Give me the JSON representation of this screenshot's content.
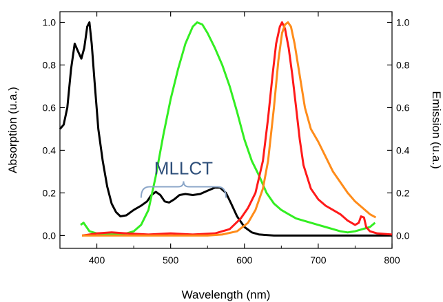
{
  "chart_data": {
    "type": "line",
    "xlabel": "Wavelength (nm)",
    "ylabel_left": "Absorption (u.a.)",
    "ylabel_right": "Emission (u.a.)",
    "xlim": [
      350,
      800
    ],
    "ylim": [
      -0.06,
      1.05
    ],
    "x_ticks": [
      "400",
      "500",
      "600",
      "700",
      "800"
    ],
    "y_ticks": [
      "0.0",
      "0.2",
      "0.4",
      "0.6",
      "0.8",
      "1.0"
    ],
    "grid": false,
    "annotation": {
      "text": "MLLCT",
      "x_from": 460,
      "x_to": 575,
      "y": 0.19
    },
    "series": [
      {
        "color": "#000000",
        "points": [
          [
            350,
            0.5
          ],
          [
            355,
            0.52
          ],
          [
            360,
            0.6
          ],
          [
            365,
            0.78
          ],
          [
            370,
            0.9
          ],
          [
            375,
            0.86
          ],
          [
            379,
            0.83
          ],
          [
            383,
            0.88
          ],
          [
            387,
            0.98
          ],
          [
            390,
            1.0
          ],
          [
            393,
            0.9
          ],
          [
            397,
            0.72
          ],
          [
            402,
            0.5
          ],
          [
            408,
            0.35
          ],
          [
            414,
            0.23
          ],
          [
            420,
            0.15
          ],
          [
            426,
            0.11
          ],
          [
            432,
            0.09
          ],
          [
            440,
            0.095
          ],
          [
            450,
            0.12
          ],
          [
            460,
            0.14
          ],
          [
            468,
            0.16
          ],
          [
            474,
            0.19
          ],
          [
            480,
            0.205
          ],
          [
            486,
            0.19
          ],
          [
            492,
            0.16
          ],
          [
            498,
            0.155
          ],
          [
            505,
            0.17
          ],
          [
            512,
            0.19
          ],
          [
            520,
            0.195
          ],
          [
            530,
            0.19
          ],
          [
            540,
            0.195
          ],
          [
            550,
            0.21
          ],
          [
            560,
            0.225
          ],
          [
            567,
            0.225
          ],
          [
            575,
            0.2
          ],
          [
            582,
            0.15
          ],
          [
            590,
            0.09
          ],
          [
            600,
            0.04
          ],
          [
            610,
            0.015
          ],
          [
            620,
            0.005
          ],
          [
            640,
            0.0
          ],
          [
            660,
            0.0
          ],
          [
            700,
            0.0
          ],
          [
            750,
            0.0
          ],
          [
            800,
            0.0
          ]
        ]
      },
      {
        "color": "#33ee22",
        "points": [
          [
            378,
            0.05
          ],
          [
            382,
            0.06
          ],
          [
            386,
            0.04
          ],
          [
            390,
            0.02
          ],
          [
            400,
            0.01
          ],
          [
            420,
            0.005
          ],
          [
            440,
            0.01
          ],
          [
            450,
            0.02
          ],
          [
            460,
            0.05
          ],
          [
            470,
            0.12
          ],
          [
            480,
            0.28
          ],
          [
            490,
            0.47
          ],
          [
            500,
            0.64
          ],
          [
            510,
            0.78
          ],
          [
            520,
            0.9
          ],
          [
            530,
            0.98
          ],
          [
            536,
            1.0
          ],
          [
            543,
            0.99
          ],
          [
            550,
            0.95
          ],
          [
            560,
            0.88
          ],
          [
            570,
            0.8
          ],
          [
            580,
            0.7
          ],
          [
            590,
            0.58
          ],
          [
            600,
            0.45
          ],
          [
            610,
            0.35
          ],
          [
            620,
            0.28
          ],
          [
            630,
            0.2
          ],
          [
            640,
            0.15
          ],
          [
            650,
            0.12
          ],
          [
            660,
            0.1
          ],
          [
            670,
            0.08
          ],
          [
            680,
            0.07
          ],
          [
            690,
            0.06
          ],
          [
            700,
            0.05
          ],
          [
            710,
            0.04
          ],
          [
            720,
            0.03
          ],
          [
            730,
            0.02
          ],
          [
            740,
            0.015
          ],
          [
            750,
            0.02
          ],
          [
            760,
            0.03
          ],
          [
            770,
            0.04
          ],
          [
            777,
            0.06
          ]
        ]
      },
      {
        "color": "#ff1a1a",
        "points": [
          [
            380,
            0.0
          ],
          [
            400,
            0.01
          ],
          [
            420,
            0.015
          ],
          [
            440,
            0.01
          ],
          [
            470,
            0.005
          ],
          [
            500,
            0.01
          ],
          [
            530,
            0.005
          ],
          [
            560,
            0.01
          ],
          [
            580,
            0.03
          ],
          [
            595,
            0.08
          ],
          [
            605,
            0.13
          ],
          [
            615,
            0.2
          ],
          [
            625,
            0.35
          ],
          [
            632,
            0.55
          ],
          [
            638,
            0.75
          ],
          [
            643,
            0.9
          ],
          [
            648,
            0.98
          ],
          [
            651,
            1.0
          ],
          [
            655,
            0.97
          ],
          [
            660,
            0.88
          ],
          [
            665,
            0.75
          ],
          [
            670,
            0.6
          ],
          [
            675,
            0.45
          ],
          [
            680,
            0.33
          ],
          [
            690,
            0.22
          ],
          [
            700,
            0.17
          ],
          [
            710,
            0.14
          ],
          [
            720,
            0.12
          ],
          [
            730,
            0.1
          ],
          [
            740,
            0.07
          ],
          [
            750,
            0.05
          ],
          [
            755,
            0.06
          ],
          [
            758,
            0.09
          ],
          [
            762,
            0.085
          ],
          [
            765,
            0.04
          ],
          [
            770,
            0.02
          ],
          [
            780,
            0.01
          ],
          [
            800,
            0.005
          ]
        ]
      },
      {
        "color": "#ff8c1a",
        "points": [
          [
            380,
            0.0
          ],
          [
            450,
            0.0
          ],
          [
            500,
            0.0
          ],
          [
            550,
            0.0
          ],
          [
            570,
            0.005
          ],
          [
            590,
            0.02
          ],
          [
            605,
            0.06
          ],
          [
            615,
            0.12
          ],
          [
            625,
            0.22
          ],
          [
            632,
            0.35
          ],
          [
            640,
            0.6
          ],
          [
            646,
            0.82
          ],
          [
            651,
            0.95
          ],
          [
            655,
            0.99
          ],
          [
            659,
            1.0
          ],
          [
            663,
            0.98
          ],
          [
            668,
            0.9
          ],
          [
            675,
            0.75
          ],
          [
            682,
            0.6
          ],
          [
            690,
            0.5
          ],
          [
            700,
            0.44
          ],
          [
            710,
            0.37
          ],
          [
            720,
            0.3
          ],
          [
            730,
            0.25
          ],
          [
            740,
            0.2
          ],
          [
            750,
            0.16
          ],
          [
            760,
            0.13
          ],
          [
            770,
            0.1
          ],
          [
            778,
            0.085
          ]
        ]
      }
    ]
  }
}
